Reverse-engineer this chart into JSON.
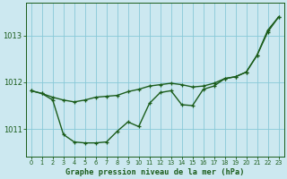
{
  "title": "Graphe pression niveau de la mer (hPa)",
  "bg_color": "#cce8f0",
  "line_color": "#1a5c1a",
  "grid_color": "#88c8d8",
  "xlim": [
    -0.5,
    23.5
  ],
  "ylim": [
    1010.4,
    1013.7
  ],
  "yticks": [
    1011,
    1012,
    1013
  ],
  "xticks": [
    0,
    1,
    2,
    3,
    4,
    5,
    6,
    7,
    8,
    9,
    10,
    11,
    12,
    13,
    14,
    15,
    16,
    17,
    18,
    19,
    20,
    21,
    22,
    23
  ],
  "series1": [
    1011.82,
    1011.76,
    1011.62,
    1010.88,
    1010.72,
    1010.7,
    1010.7,
    1010.72,
    1010.95,
    1011.15,
    1011.05,
    1011.55,
    1011.78,
    1011.82,
    1011.52,
    1011.5,
    1011.85,
    1011.92,
    1012.08,
    1012.12,
    1012.22,
    1012.58,
    1013.12,
    1013.4
  ],
  "series2": [
    1011.82,
    1011.76,
    1011.68,
    1011.62,
    1011.58,
    1011.62,
    1011.68,
    1011.7,
    1011.72,
    1011.8,
    1011.85,
    1011.92,
    1011.95,
    1011.98,
    1011.95,
    1011.9,
    1011.92,
    1011.98,
    1012.08,
    1012.12,
    1012.22,
    1012.58,
    1013.08,
    1013.4
  ],
  "marker_size": 3.5,
  "linewidth": 1.0
}
